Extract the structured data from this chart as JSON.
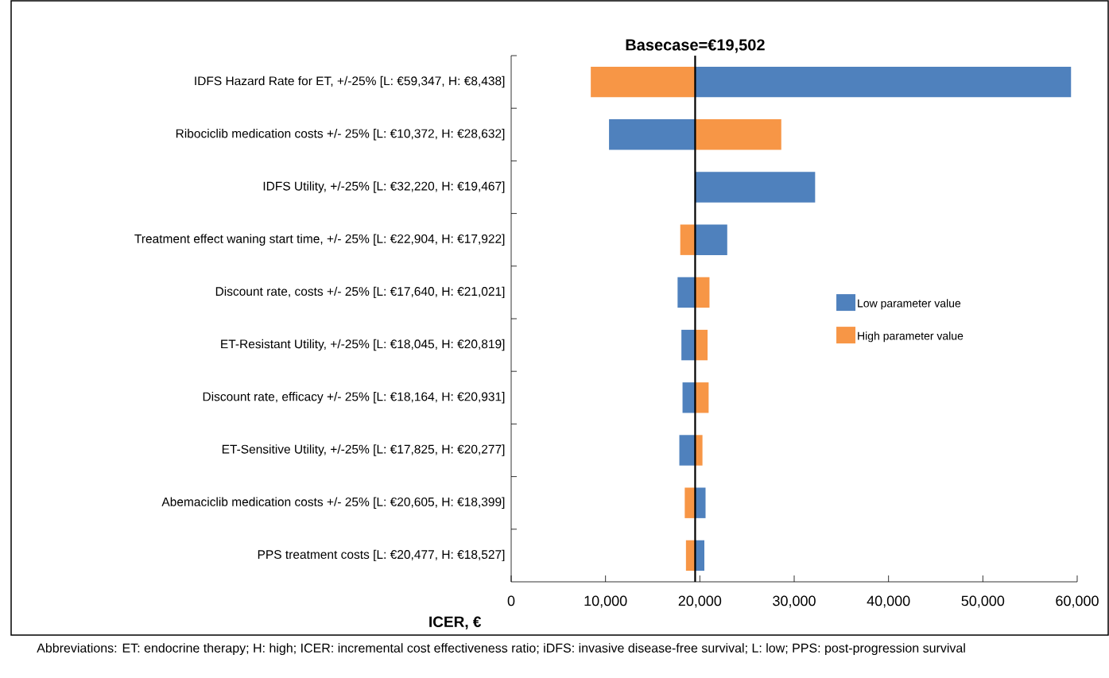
{
  "chart_data": {
    "type": "bar",
    "orientation": "horizontal",
    "categories": [
      "IDFS Hazard Rate for ET, +/-25% [L: €59,347, H: €8,438]",
      "Ribociclib medication costs +/- 25% [L: €10,372, H: €28,632]",
      "IDFS Utility, +/-25% [L: €32,220, H: €19,467]",
      "Treatment effect waning start time, +/- 25% [L: €22,904, H: €17,922]",
      "Discount rate, costs +/- 25% [L: €17,640, H: €21,021]",
      "ET-Resistant Utility, +/-25% [L: €18,045, H: €20,819]",
      "Discount rate, efficacy +/- 25% [L: €18,164, H: €20,931]",
      "ET-Sensitive Utility, +/-25% [L: €17,825, H: €20,277]",
      "Abemaciclib medication costs +/- 25% [L: €20,605, H: €18,399]",
      "PPS treatment costs [L: €20,477, H: €18,527]"
    ],
    "series": [
      {
        "name": "Low parameter value",
        "color": "#4f81bd",
        "base": [
          19502,
          19502,
          19502,
          19502,
          19502,
          19502,
          19502,
          19502,
          19502,
          19502
        ],
        "values": [
          39845,
          -9130,
          12718,
          3402,
          -1862,
          -1457,
          -1338,
          -1677,
          1103,
          975
        ]
      },
      {
        "name": "High parameter value",
        "color": "#f79646",
        "base": [
          19502,
          19502,
          null,
          19502,
          19502,
          19502,
          19502,
          19502,
          19502,
          19502
        ],
        "values": [
          -11064,
          9130,
          null,
          -1580,
          1519,
          1317,
          1429,
          775,
          -1103,
          -975
        ]
      }
    ],
    "xlabel": "ICER, €",
    "xlim": [
      0,
      60000
    ],
    "xticks": [
      0,
      {
        "value": 10000,
        "label": "10,000"
      },
      {
        "value": 20000,
        "label": "20,000"
      },
      {
        "value": 30000,
        "label": "30,000"
      },
      {
        "value": 40000,
        "label": "40,000"
      },
      {
        "value": 50000,
        "label": "50,000"
      },
      {
        "value": 60000,
        "label": "60,000"
      }
    ],
    "ref_lines": [
      {
        "axis": "x",
        "value": 19502,
        "label": "Basecase=€19,502",
        "color": "#000000"
      }
    ],
    "legend": "right",
    "annotations": [
      "Abbreviations: ET: endocrine therapy; H: high; ICER: incremental cost effectiveness ratio; iDFS: invasive disease-free survival; L: low; PPS: post-progression survival"
    ]
  }
}
